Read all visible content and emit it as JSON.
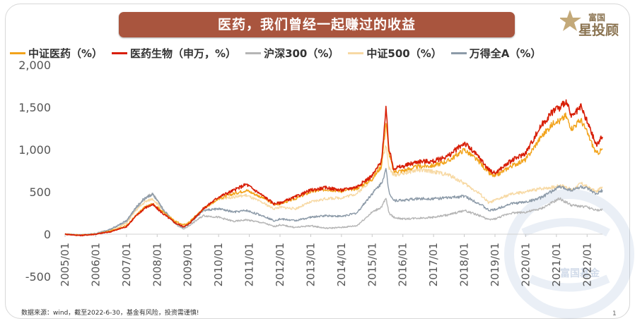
{
  "banner": {
    "title": "医药，我们曾经一起赚过的收益"
  },
  "logo": {
    "line1": "富国",
    "line2": "星投顾"
  },
  "watermark": {
    "text": "富国基金"
  },
  "footer": {
    "source": "数据来源：wind，截至2022-6-30，基金有风险，投资需谨慎!"
  },
  "page": {
    "number": "1"
  },
  "colors": {
    "banner": "#a9553e",
    "logo": "#9a8460"
  },
  "chart_data": {
    "type": "line",
    "title": "",
    "xlabel": "",
    "ylabel": "",
    "ylim": [
      -500,
      2000
    ],
    "yticks": [
      "2,000",
      "1,500",
      "1,000",
      "500",
      "0",
      "-500"
    ],
    "ytick_values": [
      2000,
      1500,
      1000,
      500,
      0,
      -500
    ],
    "xticks": [
      "2005/01",
      "2006/01",
      "2007/01",
      "2008/01",
      "2009/01",
      "2010/01",
      "2011/01",
      "2012/01",
      "2013/01",
      "2014/01",
      "2015/01",
      "2016/01",
      "2017/01",
      "2018/01",
      "2019/01",
      "2020/01",
      "2021/01",
      "2022/01"
    ],
    "xtick_years": [
      2005,
      2006,
      2007,
      2008,
      2009,
      2010,
      2011,
      2012,
      2013,
      2014,
      2015,
      2016,
      2017,
      2018,
      2019,
      2020,
      2021,
      2022
    ],
    "xlim": [
      2005.0,
      2022.5
    ],
    "grid": false,
    "legend_position": "top",
    "series": [
      {
        "name": "中证医药（%）",
        "color": "#f2a31b",
        "x": [
          2005.0,
          2005.5,
          2006.0,
          2006.5,
          2007.0,
          2007.3,
          2007.6,
          2007.85,
          2008.2,
          2008.6,
          2008.85,
          2009.0,
          2009.5,
          2010.0,
          2010.5,
          2010.9,
          2011.5,
          2011.8,
          2012.0,
          2012.5,
          2013.0,
          2013.5,
          2014.0,
          2014.5,
          2015.0,
          2015.3,
          2015.45,
          2015.55,
          2015.7,
          2016.0,
          2016.5,
          2017.0,
          2017.5,
          2018.0,
          2018.5,
          2018.8,
          2019.0,
          2019.5,
          2020.0,
          2020.5,
          2021.0,
          2021.1,
          2021.3,
          2021.5,
          2021.8,
          2022.0,
          2022.3,
          2022.5
        ],
        "y": [
          0,
          -10,
          0,
          40,
          100,
          220,
          320,
          360,
          260,
          150,
          110,
          130,
          300,
          420,
          480,
          520,
          420,
          350,
          360,
          420,
          500,
          530,
          510,
          540,
          650,
          800,
          1320,
          950,
          740,
          750,
          800,
          810,
          870,
          1000,
          850,
          720,
          680,
          800,
          880,
          1150,
          1350,
          1330,
          1400,
          1250,
          1350,
          1200,
          950,
          1000
        ]
      },
      {
        "name": "医药生物（申万，%）",
        "color": "#d81e06",
        "x": [
          2005.0,
          2005.5,
          2006.0,
          2006.5,
          2007.0,
          2007.3,
          2007.6,
          2007.85,
          2008.2,
          2008.6,
          2008.85,
          2009.0,
          2009.5,
          2010.0,
          2010.5,
          2010.9,
          2011.5,
          2011.8,
          2012.0,
          2012.5,
          2013.0,
          2013.5,
          2014.0,
          2014.5,
          2015.0,
          2015.3,
          2015.45,
          2015.55,
          2015.7,
          2016.0,
          2016.5,
          2017.0,
          2017.5,
          2018.0,
          2018.5,
          2018.8,
          2019.0,
          2019.5,
          2020.0,
          2020.5,
          2021.0,
          2021.1,
          2021.3,
          2021.5,
          2021.8,
          2022.0,
          2022.3,
          2022.5
        ],
        "y": [
          0,
          -15,
          0,
          30,
          90,
          210,
          310,
          350,
          240,
          130,
          90,
          110,
          300,
          440,
          520,
          590,
          440,
          360,
          370,
          440,
          520,
          550,
          520,
          560,
          690,
          860,
          1470,
          1000,
          780,
          800,
          860,
          860,
          930,
          1080,
          900,
          760,
          720,
          860,
          960,
          1280,
          1500,
          1480,
          1580,
          1380,
          1500,
          1330,
          1050,
          1150
        ]
      },
      {
        "name": "沪深300（%）",
        "color": "#b5b5b5",
        "x": [
          2005.0,
          2005.5,
          2006.0,
          2006.5,
          2007.0,
          2007.3,
          2007.6,
          2007.85,
          2008.2,
          2008.6,
          2008.85,
          2009.0,
          2009.5,
          2010.0,
          2010.5,
          2010.9,
          2011.5,
          2011.8,
          2012.0,
          2012.5,
          2013.0,
          2013.5,
          2014.0,
          2014.5,
          2015.0,
          2015.3,
          2015.45,
          2015.55,
          2015.7,
          2016.0,
          2016.5,
          2017.0,
          2017.5,
          2018.0,
          2018.5,
          2018.8,
          2019.0,
          2019.5,
          2020.0,
          2020.5,
          2021.0,
          2021.1,
          2021.3,
          2021.5,
          2021.8,
          2022.0,
          2022.3,
          2022.5
        ],
        "y": [
          0,
          -10,
          10,
          60,
          150,
          300,
          420,
          480,
          280,
          120,
          60,
          90,
          220,
          200,
          150,
          170,
          130,
          90,
          110,
          80,
          100,
          70,
          80,
          100,
          260,
          320,
          420,
          250,
          200,
          180,
          190,
          200,
          230,
          280,
          220,
          170,
          180,
          250,
          260,
          300,
          400,
          420,
          380,
          340,
          330,
          320,
          280,
          290
        ]
      },
      {
        "name": "中证500（%）",
        "color": "#f7d9a4",
        "x": [
          2005.0,
          2005.5,
          2006.0,
          2006.5,
          2007.0,
          2007.3,
          2007.6,
          2007.85,
          2008.2,
          2008.6,
          2008.85,
          2009.0,
          2009.5,
          2010.0,
          2010.5,
          2010.9,
          2011.5,
          2011.8,
          2012.0,
          2012.5,
          2013.0,
          2013.5,
          2014.0,
          2014.5,
          2015.0,
          2015.3,
          2015.45,
          2015.55,
          2015.7,
          2016.0,
          2016.5,
          2017.0,
          2017.5,
          2018.0,
          2018.5,
          2018.8,
          2019.0,
          2019.5,
          2020.0,
          2020.5,
          2021.0,
          2021.1,
          2021.3,
          2021.5,
          2021.8,
          2022.0,
          2022.3,
          2022.5
        ],
        "y": [
          0,
          -15,
          0,
          40,
          130,
          280,
          380,
          420,
          280,
          140,
          100,
          130,
          300,
          420,
          440,
          460,
          360,
          300,
          320,
          300,
          380,
          420,
          430,
          480,
          650,
          860,
          1050,
          780,
          700,
          720,
          760,
          740,
          700,
          600,
          480,
          370,
          400,
          470,
          500,
          540,
          560,
          580,
          560,
          520,
          600,
          560,
          500,
          560
        ]
      },
      {
        "name": "万得全A（%）",
        "color": "#8c9aa8",
        "x": [
          2005.0,
          2005.5,
          2006.0,
          2006.5,
          2007.0,
          2007.3,
          2007.6,
          2007.85,
          2008.2,
          2008.6,
          2008.85,
          2009.0,
          2009.5,
          2010.0,
          2010.5,
          2010.9,
          2011.5,
          2011.8,
          2012.0,
          2012.5,
          2013.0,
          2013.5,
          2014.0,
          2014.5,
          2015.0,
          2015.3,
          2015.45,
          2015.55,
          2015.7,
          2016.0,
          2016.5,
          2017.0,
          2017.5,
          2018.0,
          2018.5,
          2018.8,
          2019.0,
          2019.5,
          2020.0,
          2020.5,
          2021.0,
          2021.1,
          2021.3,
          2021.5,
          2021.8,
          2022.0,
          2022.3,
          2022.5
        ],
        "y": [
          0,
          -10,
          0,
          60,
          160,
          310,
          430,
          470,
          290,
          130,
          80,
          110,
          280,
          300,
          260,
          280,
          210,
          160,
          180,
          160,
          200,
          220,
          210,
          250,
          480,
          600,
          760,
          500,
          400,
          400,
          420,
          420,
          430,
          450,
          360,
          280,
          290,
          360,
          380,
          430,
          540,
          560,
          540,
          520,
          560,
          540,
          470,
          520
        ]
      }
    ]
  }
}
